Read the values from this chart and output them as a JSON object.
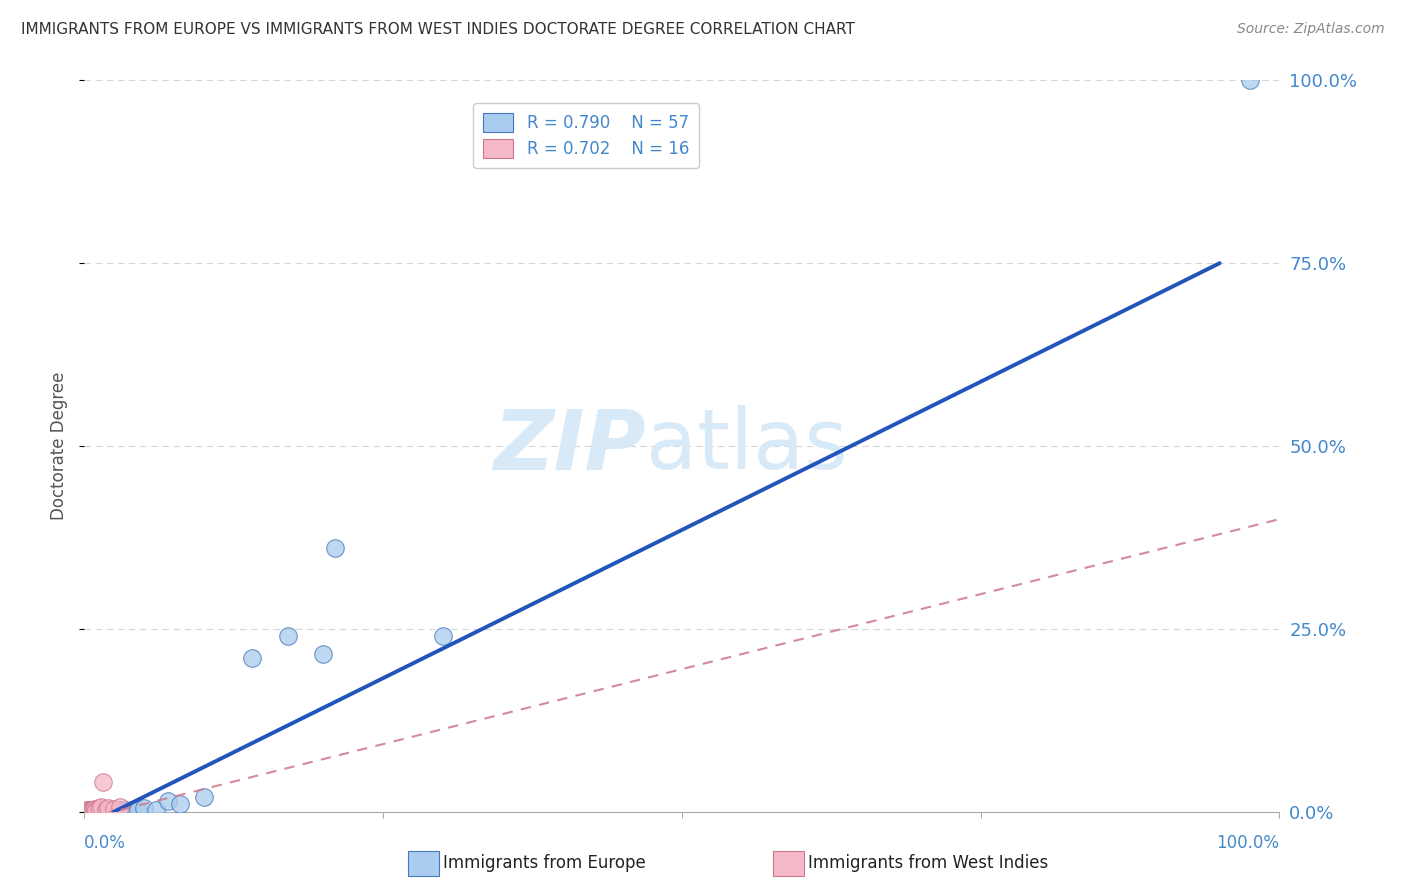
{
  "title": "IMMIGRANTS FROM EUROPE VS IMMIGRANTS FROM WEST INDIES DOCTORATE DEGREE CORRELATION CHART",
  "source": "Source: ZipAtlas.com",
  "ylabel": "Doctorate Degree",
  "ytick_labels": [
    "0.0%",
    "25.0%",
    "50.0%",
    "75.0%",
    "100.0%"
  ],
  "ytick_values": [
    0,
    25,
    50,
    75,
    100
  ],
  "xtick_values": [
    0,
    25,
    50,
    75,
    100
  ],
  "xlim": [
    0,
    100
  ],
  "ylim": [
    0,
    100
  ],
  "R_europe": 0.79,
  "N_europe": 57,
  "R_wi": 0.702,
  "N_wi": 16,
  "color_europe_fill": "#aaccee",
  "color_europe_edge": "#4477bb",
  "color_europe_line": "#2255bb",
  "color_wi_fill": "#f5b8c8",
  "color_wi_edge": "#cc7788",
  "color_wi_line": "#cc7788",
  "background_color": "#ffffff",
  "grid_color": "#bbbbbb",
  "title_color": "#333333",
  "tick_label_color": "#4488cc",
  "watermark_color": "#d8eaf8",
  "eu_line_x0": 0,
  "eu_line_y0": -2,
  "eu_line_x1": 95,
  "eu_line_y1": 75,
  "wi_line_x0": 0,
  "wi_line_y0": -1,
  "wi_line_x1": 100,
  "wi_line_y1": 40,
  "eu_x": [
    0.2,
    0.3,
    0.3,
    0.4,
    0.4,
    0.5,
    0.5,
    0.5,
    0.6,
    0.6,
    0.7,
    0.7,
    0.8,
    0.8,
    0.9,
    0.9,
    1.0,
    1.0,
    1.0,
    1.1,
    1.1,
    1.2,
    1.2,
    1.3,
    1.3,
    1.4,
    1.4,
    1.5,
    1.5,
    1.6,
    1.7,
    1.8,
    1.9,
    2.0,
    2.1,
    2.2,
    2.3,
    2.4,
    2.5,
    2.6,
    2.8,
    3.0,
    3.2,
    3.5,
    4.0,
    4.5,
    5.0,
    6.0,
    7.0,
    8.0,
    10.0,
    14.0,
    17.0,
    20.0,
    21.0,
    30.0,
    97.5
  ],
  "eu_y": [
    0.1,
    0.2,
    0.15,
    0.1,
    0.3,
    0.2,
    0.1,
    0.3,
    0.2,
    0.15,
    0.1,
    0.25,
    0.2,
    0.15,
    0.1,
    0.2,
    0.15,
    0.25,
    0.1,
    0.2,
    0.15,
    0.1,
    0.2,
    0.15,
    0.25,
    0.1,
    0.2,
    0.15,
    0.1,
    0.2,
    0.15,
    0.1,
    0.2,
    0.15,
    0.1,
    0.2,
    0.15,
    0.1,
    0.2,
    0.15,
    0.2,
    0.3,
    0.2,
    0.3,
    0.15,
    0.2,
    0.5,
    0.3,
    1.5,
    1.0,
    2.0,
    21.0,
    24.0,
    21.5,
    36.0,
    24.0,
    100.0
  ],
  "wi_x": [
    0.2,
    0.3,
    0.4,
    0.5,
    0.6,
    0.7,
    0.8,
    0.9,
    1.0,
    1.2,
    1.4,
    1.6,
    1.8,
    2.0,
    2.5,
    3.0
  ],
  "wi_y": [
    0.2,
    0.15,
    0.3,
    0.1,
    0.25,
    0.2,
    0.4,
    0.15,
    0.3,
    0.5,
    0.6,
    4.0,
    0.3,
    0.5,
    0.4,
    0.6
  ]
}
